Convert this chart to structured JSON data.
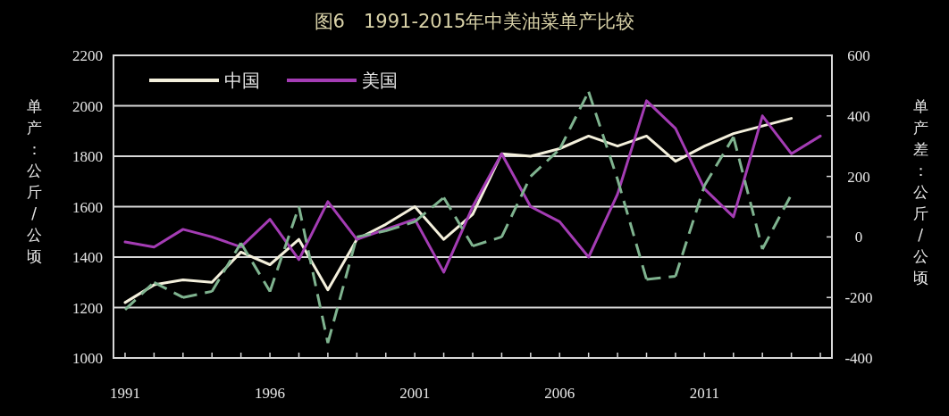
{
  "chart_data": {
    "type": "line",
    "title": "图6　1991-2015年中美油菜单产比较",
    "ylabel": "单产：公斤/公顷",
    "y2label": "单产差：公斤/公顷",
    "x": [
      1991,
      1992,
      1993,
      1994,
      1995,
      1996,
      1997,
      1998,
      1999,
      2000,
      2001,
      2002,
      2003,
      2004,
      2005,
      2006,
      2007,
      2008,
      2009,
      2010,
      2011,
      2012,
      2013,
      2014,
      2015
    ],
    "series": [
      {
        "name": "中国",
        "color": "#f4f0dc",
        "values": [
          1220,
          1290,
          1310,
          1300,
          1420,
          1370,
          1470,
          1270,
          1470,
          1530,
          1600,
          1470,
          1570,
          1810,
          1800,
          1830,
          1880,
          1840,
          1880,
          1780,
          1840,
          1890,
          1920,
          1950,
          null
        ]
      },
      {
        "name": "美国",
        "color": "#a43cb4",
        "values": [
          1460,
          1440,
          1510,
          1480,
          1440,
          1550,
          1390,
          1620,
          1470,
          1510,
          1550,
          1340,
          1600,
          1810,
          1600,
          1540,
          1400,
          1650,
          2020,
          1910,
          1670,
          1560,
          1960,
          1810,
          1880
        ]
      },
      {
        "color": "#7fb38f",
        "axis": "y2",
        "line_style": "dashed",
        "values": [
          -240,
          -150,
          -200,
          -180,
          -20,
          -180,
          100,
          -350,
          0,
          20,
          50,
          130,
          -30,
          0,
          200,
          290,
          480,
          190,
          -140,
          -130,
          170,
          330,
          -40,
          140,
          null
        ]
      }
    ],
    "xlim": [
      1990.6,
      2015.4
    ],
    "xticks": [
      1991,
      1996,
      2001,
      2006,
      2011
    ],
    "ylim": [
      1000,
      2200
    ],
    "yticks": [
      1000,
      1200,
      1400,
      1600,
      1800,
      2000,
      2200
    ],
    "y2lim": [
      -400,
      600
    ],
    "y2ticks": [
      {
        "value": -400,
        "label": "-400"
      },
      {
        "value": -200,
        "label": "-200"
      },
      0,
      200,
      400,
      600
    ],
    "grid": "y",
    "legend": "top left"
  }
}
